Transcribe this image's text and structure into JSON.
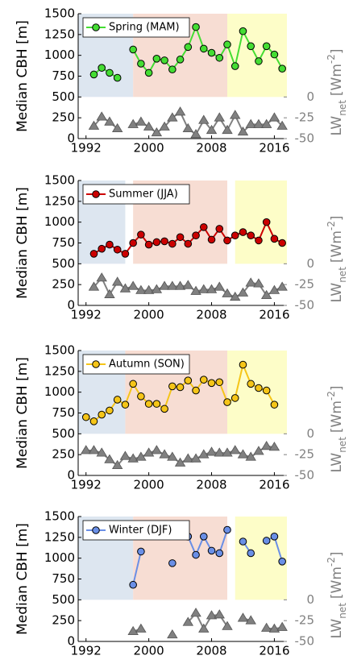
{
  "chart_data": [
    {
      "type": "line",
      "ylabel": "Median CBH [m]",
      "y2label": {
        "base": "LW",
        "sub": "net",
        "unit": "[Wm",
        "sup": "-2",
        "close": "]"
      },
      "x": [
        1992,
        1993,
        1994,
        1995,
        1996,
        1997,
        1998,
        1999,
        2000,
        2001,
        2002,
        2003,
        2004,
        2005,
        2006,
        2007,
        2008,
        2009,
        2010,
        2011,
        2012,
        2013,
        2014,
        2015,
        2016,
        2017
      ],
      "xlim": [
        1991,
        2017.6
      ],
      "xticks": [
        1992,
        2000,
        2008,
        2016
      ],
      "ylim": [
        0,
        1500
      ],
      "yticks": [
        0,
        250,
        500,
        750,
        1000,
        1250,
        1500
      ],
      "y2lim": [
        -50,
        100
      ],
      "y2ticks": [
        0,
        -25,
        -50
      ],
      "shading": [
        {
          "start": 1991,
          "end": 1998,
          "low": 500,
          "high": 1500,
          "color": "#dde6f0"
        },
        {
          "start": 1998,
          "end": 2010,
          "low": 500,
          "high": 1500,
          "color": "#f7ddd3"
        },
        {
          "start": 2010,
          "end": 2017.6,
          "low": 500,
          "high": 1500,
          "color": "#fdfdc8"
        }
      ],
      "series": [
        {
          "name": "Spring (MAM)",
          "color": "#44dd33",
          "values": [
            null,
            770,
            850,
            790,
            730,
            null,
            1070,
            900,
            790,
            960,
            940,
            830,
            950,
            1100,
            1340,
            1080,
            1030,
            970,
            1130,
            870,
            1290,
            1110,
            930,
            1110,
            1010,
            840
          ]
        },
        {
          "axis": "y2",
          "color": "#808080",
          "values": [
            null,
            -35,
            -24,
            -30,
            -38,
            null,
            -33,
            -30,
            -36,
            -43,
            -36,
            -25,
            -18,
            -38,
            -45,
            -28,
            -40,
            -25,
            -40,
            -22,
            -42,
            -33,
            -33,
            -33,
            -25,
            -35
          ]
        }
      ]
    },
    {
      "type": "line",
      "ylabel": "Median CBH [m]",
      "y2label": {
        "base": "LW",
        "sub": "net",
        "unit": "[Wm",
        "sup": "-2",
        "close": "]"
      },
      "x": [
        1992,
        1993,
        1994,
        1995,
        1996,
        1997,
        1998,
        1999,
        2000,
        2001,
        2002,
        2003,
        2004,
        2005,
        2006,
        2007,
        2008,
        2009,
        2010,
        2011,
        2012,
        2013,
        2014,
        2015,
        2016,
        2017
      ],
      "xlim": [
        1991,
        2017.6
      ],
      "xticks": [
        1992,
        2000,
        2008,
        2016
      ],
      "ylim": [
        0,
        1500
      ],
      "yticks": [
        0,
        250,
        500,
        750,
        1000,
        1250,
        1500
      ],
      "y2lim": [
        -50,
        100
      ],
      "y2ticks": [
        0,
        -25,
        -50
      ],
      "shading": [
        {
          "start": 1991,
          "end": 1997,
          "low": 500,
          "high": 1500,
          "color": "#dde6f0"
        },
        {
          "start": 1998,
          "end": 2010,
          "low": 500,
          "high": 1500,
          "color": "#f7ddd3"
        },
        {
          "start": 2011,
          "end": 2017.6,
          "low": 500,
          "high": 1500,
          "color": "#fdfdc8"
        }
      ],
      "series": [
        {
          "name": "Summer (JJA)",
          "color": "#cc0000",
          "values": [
            null,
            620,
            680,
            730,
            670,
            620,
            750,
            850,
            730,
            760,
            770,
            740,
            820,
            740,
            840,
            940,
            790,
            920,
            780,
            840,
            880,
            840,
            780,
            1000,
            800,
            750
          ]
        },
        {
          "axis": "y2",
          "color": "#808080",
          "values": [
            null,
            -28,
            -17,
            -37,
            -22,
            -30,
            -27,
            -32,
            -32,
            -31,
            -27,
            -27,
            -27,
            -26,
            -33,
            -31,
            -31,
            -28,
            -36,
            -40,
            -35,
            -23,
            -24,
            -38,
            -32,
            -28
          ]
        }
      ]
    },
    {
      "type": "line",
      "ylabel": "Median CBH [m]",
      "y2label": {
        "base": "LW",
        "sub": "net",
        "unit": "[Wm",
        "sup": "-2",
        "close": "]"
      },
      "x": [
        1992,
        1993,
        1994,
        1995,
        1996,
        1997,
        1998,
        1999,
        2000,
        2001,
        2002,
        2003,
        2004,
        2005,
        2006,
        2007,
        2008,
        2009,
        2010,
        2011,
        2012,
        2013,
        2014,
        2015,
        2016,
        2017
      ],
      "xlim": [
        1991,
        2017.6
      ],
      "xticks": [
        1992,
        2000,
        2008,
        2016
      ],
      "ylim": [
        0,
        1500
      ],
      "yticks": [
        0,
        250,
        500,
        750,
        1000,
        1250,
        1500
      ],
      "y2lim": [
        -50,
        100
      ],
      "y2ticks": [
        0,
        -25,
        -50
      ],
      "shading": [
        {
          "start": 1991,
          "end": 1997,
          "low": 500,
          "high": 1500,
          "color": "#dde6f0"
        },
        {
          "start": 1997,
          "end": 2010,
          "low": 500,
          "high": 1500,
          "color": "#f7ddd3"
        },
        {
          "start": 2010,
          "end": 2017.6,
          "low": 500,
          "high": 1500,
          "color": "#fdfdc8"
        }
      ],
      "series": [
        {
          "name": "Autumn (SON)",
          "color": "#f5c518",
          "values": [
            700,
            650,
            730,
            780,
            910,
            850,
            1100,
            950,
            860,
            860,
            800,
            1070,
            1060,
            1140,
            1020,
            1150,
            1110,
            1120,
            880,
            930,
            1330,
            1100,
            1050,
            1020,
            850,
            null
          ]
        },
        {
          "axis": "y2",
          "color": "#808080",
          "values": [
            -20,
            -20,
            -23,
            -31,
            -38,
            -27,
            -30,
            -28,
            -23,
            -20,
            -25,
            -28,
            -35,
            -30,
            -30,
            -25,
            -22,
            -23,
            -23,
            -20,
            -25,
            -28,
            -21,
            -15,
            -16,
            null
          ]
        }
      ]
    },
    {
      "type": "line",
      "ylabel": "Median CBH [m]",
      "y2label": {
        "base": "LW",
        "sub": "net",
        "unit": "[Wm",
        "sup": "-2",
        "close": "]"
      },
      "x": [
        1992,
        1993,
        1994,
        1995,
        1996,
        1997,
        1998,
        1999,
        2000,
        2001,
        2002,
        2003,
        2004,
        2005,
        2006,
        2007,
        2008,
        2009,
        2010,
        2011,
        2012,
        2013,
        2014,
        2015,
        2016,
        2017
      ],
      "xlim": [
        1991,
        2017.6
      ],
      "xticks": [
        1992,
        2000,
        2008,
        2016
      ],
      "ylim": [
        0,
        1500
      ],
      "yticks": [
        0,
        250,
        500,
        750,
        1000,
        1250,
        1500
      ],
      "y2lim": [
        -50,
        100
      ],
      "y2ticks": [
        0,
        -25,
        -50
      ],
      "shading": [
        {
          "start": 1991,
          "end": 1998,
          "low": 500,
          "high": 1500,
          "color": "#dde6f0"
        },
        {
          "start": 1998,
          "end": 2010,
          "low": 500,
          "high": 1500,
          "color": "#f7ddd3"
        },
        {
          "start": 2011,
          "end": 2017.6,
          "low": 500,
          "high": 1500,
          "color": "#fdfdc8"
        }
      ],
      "series": [
        {
          "name": "Winter (DJF)",
          "color": "#6a8fe6",
          "values": [
            null,
            null,
            null,
            null,
            null,
            null,
            680,
            1080,
            null,
            null,
            null,
            940,
            null,
            1260,
            1040,
            1260,
            1090,
            1060,
            1340,
            null,
            1200,
            1060,
            null,
            1210,
            1260,
            960
          ]
        },
        {
          "axis": "y2",
          "color": "#808080",
          "values": [
            null,
            null,
            null,
            null,
            null,
            null,
            -38,
            -35,
            null,
            null,
            null,
            -42,
            null,
            -27,
            -16,
            -35,
            -19,
            -18,
            -32,
            null,
            -22,
            -25,
            null,
            -34,
            -35,
            -33
          ]
        }
      ]
    }
  ]
}
